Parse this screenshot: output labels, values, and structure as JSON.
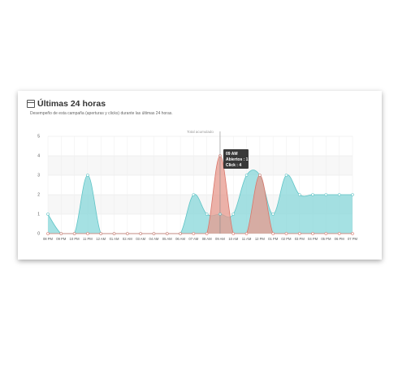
{
  "panel": {
    "title": "Últimas 24 horas",
    "subtitle": "Desempeño de esta campaña (aperturas y clicks) durante las últimas 24 horas."
  },
  "icons": {
    "calendar": "calendar-icon"
  },
  "chart_data": {
    "type": "area",
    "title": "Total acumulado",
    "categories": [
      "08 PM",
      "09 PM",
      "10 PM",
      "11 PM",
      "12 AM",
      "01 AM",
      "02 AM",
      "03 AM",
      "04 AM",
      "05 AM",
      "06 AM",
      "07 AM",
      "08 AM",
      "09 AM",
      "10 AM",
      "11 AM",
      "12 PM",
      "01 PM",
      "02 PM",
      "03 PM",
      "04 PM",
      "05 PM",
      "06 PM",
      "07 PM"
    ],
    "tick_labels": [
      "08 PM",
      "09 PM",
      "10 PM",
      "11 PM",
      "12 AM",
      "01 AM",
      "02 AM",
      "03 AM",
      "04 AM",
      "05 AM",
      "06 AM",
      "07 AM",
      "08 AM",
      "09 AM",
      "10 AM",
      "11 AM",
      "12 PM",
      "01 PM",
      "02 PM",
      "03 PM",
      "04 PM",
      "05 PM",
      "06 PM",
      "07 PM"
    ],
    "ylim": [
      0,
      5
    ],
    "yticks": [
      "0",
      "1",
      "2",
      "3",
      "4",
      "5"
    ],
    "series": [
      {
        "key": "aperturas",
        "color": "#87d7d9",
        "stroke": "#5fc4c6",
        "values": [
          1,
          0,
          0,
          3,
          0,
          0,
          0,
          0,
          0,
          0,
          0,
          2,
          1,
          1,
          1,
          3,
          3,
          1,
          3,
          2,
          2,
          2,
          2,
          2
        ]
      },
      {
        "key": "clicks",
        "color": "#e79a8e",
        "stroke": "#d9766a",
        "values": [
          0,
          0,
          0,
          0,
          0,
          0,
          0,
          0,
          0,
          0,
          0,
          0,
          0,
          4,
          0,
          0,
          3,
          0,
          0,
          0,
          0,
          0,
          0,
          0
        ]
      }
    ],
    "tooltip": {
      "title": "09 AM",
      "line1": "Abiertos : 1",
      "line2": "Click : 4",
      "category_index": 13
    },
    "grid": true
  }
}
